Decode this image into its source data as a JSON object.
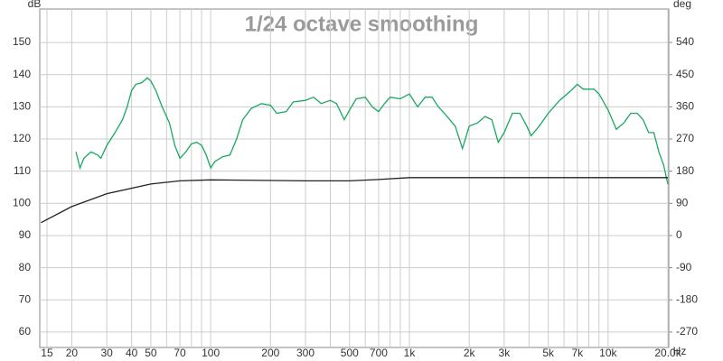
{
  "chart_data": {
    "type": "line",
    "title": "1/24 octave smoothing",
    "y_label": "dB",
    "y2_label": "deg",
    "x_label": "Hz",
    "xlog": true,
    "grid": true,
    "xlim": [
      13.8,
      20200
    ],
    "ylim": [
      55.2,
      160.4
    ],
    "y2lim": [
      -313.2,
      633.6
    ],
    "xticks": [
      15,
      20,
      30,
      40,
      50,
      70,
      100,
      200,
      300,
      500,
      700,
      {
        "value": 1000,
        "label": "1k"
      },
      {
        "value": 2000,
        "label": "2k"
      },
      {
        "value": 3000,
        "label": "3k"
      },
      {
        "value": 5000,
        "label": "5k"
      },
      {
        "value": 7000,
        "label": "7k"
      },
      {
        "value": 10000,
        "label": "10k"
      },
      {
        "value": 20000,
        "label": "20.0k"
      }
    ],
    "x_minor_ticks": [
      60,
      80,
      90,
      400,
      600,
      800,
      900,
      4000,
      6000,
      8000,
      9000
    ],
    "yticks": [
      60,
      70,
      80,
      90,
      100,
      110,
      120,
      130,
      140,
      150
    ],
    "y2ticks": [
      -270,
      -180,
      -90,
      0,
      90,
      180,
      270,
      360,
      450,
      540
    ],
    "series": [
      {
        "color": "#1aa860",
        "x": [
          21,
          22,
          23,
          25,
          27,
          28,
          30,
          33,
          36,
          38,
          40,
          42,
          45,
          48,
          50,
          53,
          57,
          62,
          66,
          70,
          75,
          80,
          85,
          90,
          95,
          100,
          105,
          115,
          125,
          135,
          145,
          160,
          180,
          200,
          215,
          240,
          260,
          300,
          330,
          360,
          400,
          430,
          470,
          500,
          540,
          600,
          650,
          700,
          750,
          800,
          900,
          1000,
          1100,
          1200,
          1300,
          1400,
          1500,
          1700,
          1850,
          2000,
          2200,
          2400,
          2600,
          2800,
          3000,
          3300,
          3600,
          3900,
          4100,
          4500,
          5000,
          5700,
          6500,
          7000,
          7500,
          8500,
          9000,
          10000,
          11000,
          12000,
          13000,
          14000,
          15000,
          16000,
          17000,
          18000,
          19000,
          20000
        ],
        "values": [
          116,
          111,
          114,
          116,
          115,
          114,
          118,
          122,
          126,
          130,
          135,
          137,
          137.5,
          139,
          138,
          135,
          130,
          125,
          118,
          114,
          116,
          118.5,
          119,
          118,
          115,
          111,
          113,
          114.5,
          115,
          120,
          126,
          129.5,
          131,
          130.5,
          128,
          128.5,
          131.5,
          132,
          133,
          131,
          132,
          131,
          126,
          129,
          132.5,
          133,
          130,
          128.5,
          131,
          133,
          132.5,
          134,
          130,
          133,
          133,
          130,
          128,
          124,
          117,
          124,
          125,
          127,
          126,
          119,
          122,
          128,
          128,
          124,
          121,
          124,
          128,
          132,
          135,
          137,
          135.5,
          135.5,
          134,
          129,
          123,
          125,
          128,
          128,
          126,
          122,
          122,
          116,
          112,
          106
        ]
      },
      {
        "color": "#222222",
        "x": [
          14,
          20,
          30,
          50,
          70,
          100,
          300,
          500,
          700,
          1000,
          2000,
          5000,
          20000
        ],
        "values": [
          94,
          99,
          103,
          106,
          107,
          107.3,
          107,
          107,
          107.4,
          108,
          108,
          108,
          108
        ]
      }
    ]
  }
}
